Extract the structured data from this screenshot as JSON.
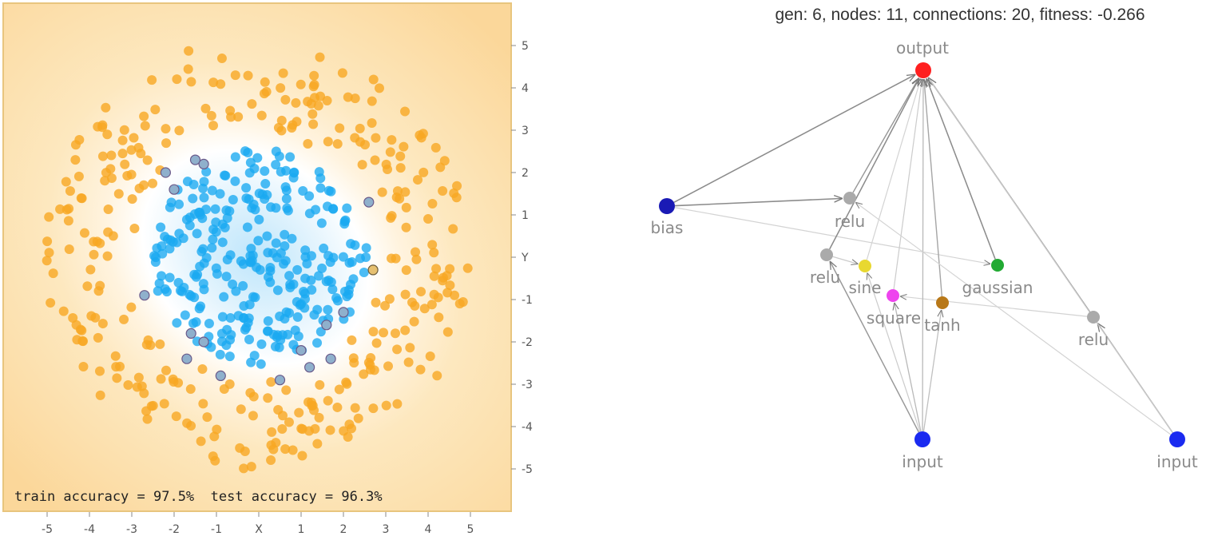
{
  "chart_data": [
    {
      "type": "scatter",
      "xlabel": "X",
      "ylabel": "Y",
      "xlim": [
        -6,
        6
      ],
      "ylim": [
        -6,
        6
      ],
      "x_ticks": [
        "-5",
        "-4",
        "-3",
        "-2",
        "-1",
        "X",
        "1",
        "2",
        "3",
        "4",
        "5"
      ],
      "y_ticks": [
        "5",
        "4",
        "3",
        "2",
        "1",
        "Y",
        "-1",
        "-2",
        "-3",
        "-4",
        "-5"
      ],
      "accuracy_text": "train accuracy = 97.5%  test accuracy = 96.3%",
      "background": "decision surface: orange outside, light blue near the center, white boundary at r ≈ 3",
      "series": [
        {
          "class": "orange",
          "color": "#f7a823",
          "distribution": "ring, radius ≈ 3 to 5",
          "count_est": 320
        },
        {
          "class": "blue",
          "color": "#1aa9f1",
          "distribution": "disc, radius ≈ 0 to 2.6",
          "count_est": 280
        }
      ],
      "misclassified": {
        "blue_points_outside": [
          [
            -2.2,
            2.0
          ],
          [
            -2.0,
            1.6
          ],
          [
            -1.5,
            2.3
          ],
          [
            -1.3,
            2.2
          ],
          [
            -2.7,
            -0.9
          ],
          [
            -1.6,
            -1.8
          ],
          [
            -1.3,
            -2.0
          ],
          [
            -1.7,
            -2.4
          ],
          [
            -0.9,
            -2.8
          ],
          [
            1.0,
            -2.2
          ],
          [
            1.2,
            -2.6
          ],
          [
            1.7,
            -2.4
          ],
          [
            0.5,
            -2.9
          ],
          [
            1.6,
            -1.6
          ],
          [
            2.0,
            -1.3
          ],
          [
            2.6,
            1.3
          ]
        ],
        "orange_points_inside": [
          [
            2.7,
            -0.3
          ]
        ]
      }
    },
    {
      "type": "network",
      "header": "gen: 6, nodes: 11, connections: 20, fitness: -0.266",
      "nodes": [
        {
          "id": "output",
          "label": "output",
          "color": "#ff2020"
        },
        {
          "id": "bias",
          "label": "bias",
          "color": "#1a1ab5"
        },
        {
          "id": "relu1",
          "label": "relu",
          "color": "#aaaaaa"
        },
        {
          "id": "relu2",
          "label": "relu",
          "color": "#aaaaaa"
        },
        {
          "id": "sine",
          "label": "sine",
          "color": "#e8d830"
        },
        {
          "id": "square",
          "label": "square",
          "color": "#ee44ee"
        },
        {
          "id": "tanh",
          "label": "tanh",
          "color": "#b87818"
        },
        {
          "id": "gaussian",
          "label": "gaussian",
          "color": "#22aa33"
        },
        {
          "id": "relu3",
          "label": "relu",
          "color": "#aaaaaa"
        },
        {
          "id": "input1",
          "label": "input",
          "color": "#1a2af0"
        },
        {
          "id": "input2",
          "label": "input",
          "color": "#1a2af0"
        }
      ],
      "edges": [
        {
          "from": "bias",
          "to": "output",
          "strength": 0.7
        },
        {
          "from": "bias",
          "to": "relu1",
          "strength": 0.7
        },
        {
          "from": "bias",
          "to": "gaussian",
          "strength": 0.15
        },
        {
          "from": "relu1",
          "to": "output",
          "strength": 0.6
        },
        {
          "from": "relu2",
          "to": "output",
          "strength": 0.7
        },
        {
          "from": "relu2",
          "to": "sine",
          "strength": 0.2
        },
        {
          "from": "sine",
          "to": "output",
          "strength": 0.15
        },
        {
          "from": "square",
          "to": "output",
          "strength": 0.2
        },
        {
          "from": "tanh",
          "to": "output",
          "strength": 0.5
        },
        {
          "from": "gaussian",
          "to": "output",
          "strength": 0.7
        },
        {
          "from": "relu3",
          "to": "output",
          "strength": 0.8
        },
        {
          "from": "relu3",
          "to": "square",
          "strength": 0.15
        },
        {
          "from": "input1",
          "to": "output",
          "strength": 0.35
        },
        {
          "from": "input1",
          "to": "relu2",
          "strength": 0.6
        },
        {
          "from": "input1",
          "to": "sine",
          "strength": 0.2
        },
        {
          "from": "input1",
          "to": "square",
          "strength": 0.35
        },
        {
          "from": "input1",
          "to": "tanh",
          "strength": 0.3
        },
        {
          "from": "input2",
          "to": "relu3",
          "strength": 0.7
        },
        {
          "from": "input2",
          "to": "relu1",
          "strength": 0.15
        },
        {
          "from": "input2",
          "to": "output",
          "strength": 0.2
        }
      ]
    }
  ]
}
